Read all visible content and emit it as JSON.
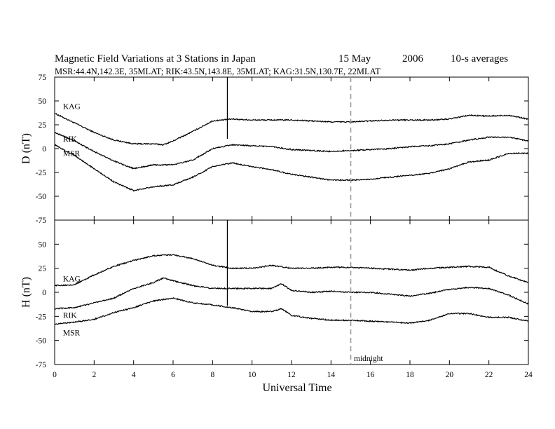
{
  "title": {
    "main": "Magnetic Field Variations at 3 Stations in Japan",
    "date": "15  May",
    "year": "2006",
    "avg": "10-s averages",
    "subtitle": "MSR:44.4N,142.3E, 35MLAT;  RIK:43.5N,143.8E, 35MLAT;  KAG:31.5N,130.7E, 22MLAT"
  },
  "chart_data": [
    {
      "type": "line",
      "ylabel": "D (nT)",
      "ylim": [
        -75,
        75
      ],
      "yticks": [
        "75",
        "50",
        "25",
        "0",
        "-25",
        "-50",
        "-75"
      ],
      "xlim": [
        0,
        24
      ],
      "series": [
        {
          "name": "KAG",
          "x": [
            0,
            1,
            2,
            3,
            4,
            5,
            5.5,
            6,
            7,
            8,
            9,
            10,
            11,
            12,
            13,
            14,
            15,
            16,
            17,
            18,
            19,
            20,
            21,
            22,
            23,
            24
          ],
          "values": [
            37,
            27,
            17,
            9,
            5,
            5,
            4,
            8,
            18,
            29,
            31,
            30,
            30,
            30,
            29,
            28,
            28,
            29,
            30,
            30,
            30,
            31,
            35,
            34,
            35,
            31
          ]
        },
        {
          "name": "RIK",
          "x": [
            0,
            1,
            2,
            3,
            4,
            5,
            6,
            7,
            8,
            9,
            10,
            11,
            12,
            13,
            14,
            15,
            16,
            17,
            18,
            19,
            20,
            21,
            22,
            23,
            24
          ],
          "values": [
            17,
            8,
            -3,
            -13,
            -21,
            -17,
            -17,
            -12,
            0,
            4,
            3,
            2,
            -1,
            -2,
            -3,
            -2,
            -1,
            0,
            2,
            3,
            5,
            9,
            12,
            12,
            8
          ]
        },
        {
          "name": "MSR",
          "x": [
            0,
            1,
            2,
            3,
            4,
            5,
            6,
            7,
            8,
            9,
            10,
            11,
            12,
            13,
            14,
            15,
            16,
            17,
            18,
            19,
            20,
            21,
            22,
            23,
            24
          ],
          "values": [
            4,
            -7,
            -21,
            -35,
            -44,
            -40,
            -38,
            -30,
            -19,
            -15,
            -19,
            -22,
            -27,
            -30,
            -33,
            -33,
            -32,
            -30,
            -28,
            -26,
            -21,
            -14,
            -12,
            -5,
            -5
          ]
        }
      ]
    },
    {
      "type": "line",
      "xlabel": "Universal Time",
      "ylabel": "H (nT)",
      "ylim": [
        -75,
        75
      ],
      "yticks": [
        "50",
        "25",
        "0",
        "-25",
        "-50",
        "-75"
      ],
      "xlim": [
        0,
        24
      ],
      "xticks": [
        "0",
        "2",
        "4",
        "6",
        "8",
        "10",
        "12",
        "14",
        "16",
        "18",
        "20",
        "22",
        "24"
      ],
      "series": [
        {
          "name": "KAG",
          "x": [
            0,
            1,
            2,
            3,
            4,
            5,
            6,
            7,
            8,
            9,
            10,
            11,
            12,
            13,
            14,
            15,
            16,
            17,
            18,
            19,
            20,
            21,
            22,
            23,
            24
          ],
          "values": [
            7,
            8,
            18,
            27,
            33,
            38,
            39,
            35,
            28,
            25,
            25,
            28,
            25,
            25,
            26,
            26,
            25,
            24,
            23,
            25,
            26,
            27,
            26,
            17,
            10
          ]
        },
        {
          "name": "RIK",
          "x": [
            0,
            1,
            2,
            3,
            4,
            5,
            5.5,
            6,
            7,
            8,
            9,
            10,
            11,
            11.5,
            12,
            13,
            14,
            15,
            16,
            17,
            18,
            19,
            20,
            21,
            22,
            23,
            24
          ],
          "values": [
            -17,
            -16,
            -11,
            -6,
            4,
            10,
            15,
            12,
            7,
            4,
            4,
            4,
            4,
            9,
            2,
            0,
            1,
            0,
            0,
            -2,
            -4,
            -1,
            3,
            5,
            4,
            -3,
            -12
          ]
        },
        {
          "name": "MSR",
          "x": [
            0,
            1,
            2,
            3,
            4,
            5,
            6,
            7,
            8,
            9,
            10,
            11,
            11.5,
            12,
            13,
            14,
            15,
            16,
            17,
            18,
            19,
            20,
            21,
            22,
            23,
            24
          ],
          "values": [
            -33,
            -31,
            -28,
            -21,
            -16,
            -9,
            -6,
            -11,
            -13,
            -16,
            -20,
            -20,
            -17,
            -24,
            -27,
            -29,
            -29,
            -30,
            -31,
            -32,
            -29,
            -22,
            -22,
            -26,
            -26,
            -30
          ]
        }
      ]
    }
  ],
  "markers": {
    "spike_ut": 8.75,
    "midnight_ut": 15,
    "midnight_label": "midnight"
  }
}
